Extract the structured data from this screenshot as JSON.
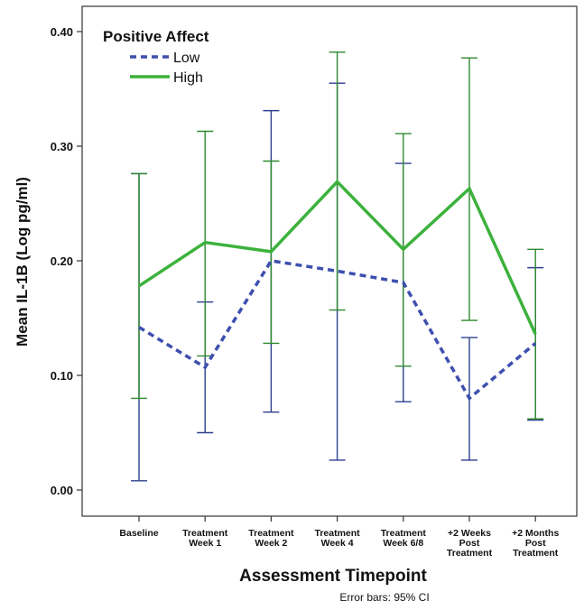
{
  "chart_data": {
    "type": "line",
    "ylabel": "Mean IL-1B (Log pg/ml)",
    "xlabel": "Assessment Timepoint",
    "note": "Error bars: 95% CI",
    "ylim": [
      0.0,
      0.4
    ],
    "yticks": [
      "0.00",
      "0.10",
      "0.20",
      "0.30",
      "0.40"
    ],
    "ytick_values": [
      0.0,
      0.1,
      0.2,
      0.3,
      0.4
    ],
    "grid": false,
    "legend": {
      "title": "Positive Affect",
      "position": "top-left"
    },
    "categories": [
      [
        "Baseline"
      ],
      [
        "Treatment",
        "Week 1"
      ],
      [
        "Treatment",
        "Week 2"
      ],
      [
        "Treatment",
        "Week 4"
      ],
      [
        "Treatment",
        "Week 6/8"
      ],
      [
        "+2 Weeks",
        "Post",
        "Treatment"
      ],
      [
        "+2 Months",
        "Post",
        "Treatment"
      ]
    ],
    "series": [
      {
        "name": "Low",
        "color": "#3d4fae",
        "errorbar_color": "#2e3f8f",
        "dash": "dashed",
        "values": [
          0.142,
          0.107,
          0.2,
          0.191,
          0.181,
          0.08,
          0.128
        ],
        "ci_low": [
          0.008,
          0.05,
          0.068,
          0.026,
          0.077,
          0.026,
          0.061
        ],
        "ci_high": [
          0.276,
          0.164,
          0.331,
          0.355,
          0.285,
          0.133,
          0.194
        ]
      },
      {
        "name": "High",
        "color": "#3cb23c",
        "errorbar_color": "#2e8a2e",
        "dash": "solid",
        "values": [
          0.178,
          0.216,
          0.208,
          0.269,
          0.21,
          0.263,
          0.136
        ],
        "ci_low": [
          0.08,
          0.117,
          0.128,
          0.157,
          0.108,
          0.148,
          0.062
        ],
        "ci_high": [
          0.276,
          0.313,
          0.287,
          0.382,
          0.311,
          0.377,
          0.21
        ]
      }
    ]
  }
}
